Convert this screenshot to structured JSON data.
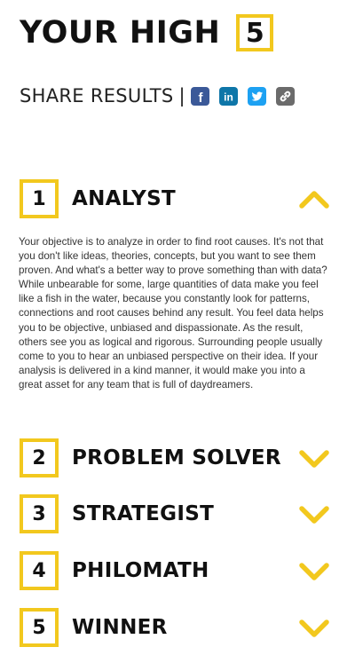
{
  "header": {
    "title": "YOUR HIGH",
    "count": "5"
  },
  "share": {
    "label": "SHARE RESULTS",
    "separator": "|",
    "icons": [
      {
        "name": "facebook",
        "glyph": "f",
        "color": "#3b5998"
      },
      {
        "name": "linkedin",
        "glyph": "in",
        "color": "#0e76a8"
      },
      {
        "name": "twitter",
        "glyph": "twitter-bird",
        "color": "#1da1f2"
      },
      {
        "name": "link",
        "glyph": "link",
        "color": "#6b6b6b"
      }
    ]
  },
  "accent_color": "#f2c81e",
  "items": [
    {
      "number": "1",
      "label": "ANALYST",
      "expanded": true,
      "description": "Your objective is to analyze in order to find root causes. It's not that you don't like ideas, theories, concepts, but you want to see them proven. And what's a better way to prove something than with data? While unbearable for some, large quantities of data make you feel like a fish in the water, because you constantly look for patterns, connections and root causes behind any result. You feel data helps you to be objective, unbiased and dispassionate. As the result, others see you as logical and rigorous. Surrounding people usually come to you to hear an unbiased perspective on their idea. If your analysis is delivered in a kind manner, it would make you into a great asset for any team that is full of daydreamers."
    },
    {
      "number": "2",
      "label": "PROBLEM SOLVER",
      "expanded": false
    },
    {
      "number": "3",
      "label": "STRATEGIST",
      "expanded": false
    },
    {
      "number": "4",
      "label": "PHILOMATH",
      "expanded": false
    },
    {
      "number": "5",
      "label": "WINNER",
      "expanded": false
    }
  ]
}
